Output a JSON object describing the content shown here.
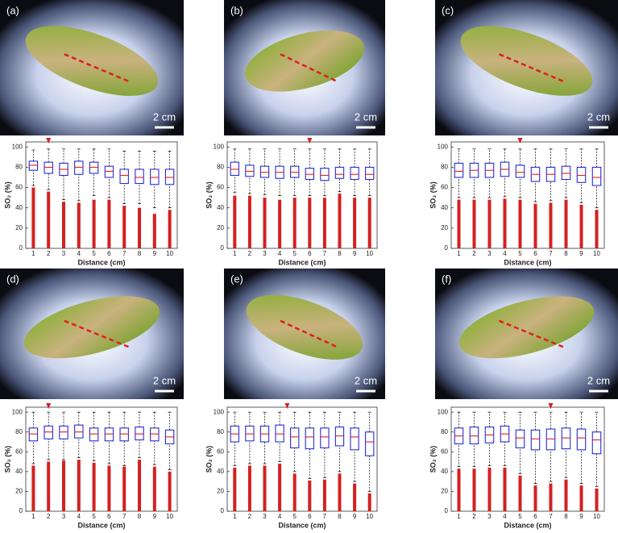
{
  "chart_data": [
    {
      "type": "box",
      "panel_label": "(a)",
      "scale_bar": "2 cm",
      "xlabel": "Distance  (cm)",
      "ylabel": "SO₂ (%)",
      "categories": [
        "1",
        "2",
        "3",
        "4",
        "5",
        "6",
        "7",
        "8",
        "9",
        "10"
      ],
      "ylim": [
        0,
        105
      ],
      "yticks": [
        0,
        20,
        40,
        60,
        80,
        100
      ],
      "box_color": "#2a2ad8",
      "median_color": "#e02020",
      "outlier_color": "#d42020",
      "marker_x": 2,
      "median": [
        82,
        80,
        78,
        80,
        80,
        76,
        72,
        70,
        70,
        70
      ],
      "q1": [
        77,
        74,
        72,
        73,
        74,
        70,
        64,
        64,
        63,
        63
      ],
      "q3": [
        86,
        85,
        84,
        86,
        85,
        81,
        78,
        78,
        78,
        78
      ],
      "whisker_low": [
        62,
        58,
        48,
        47,
        52,
        50,
        44,
        44,
        40,
        40
      ],
      "whisker_high": [
        97,
        98,
        98,
        98,
        98,
        98,
        96,
        96,
        96,
        96
      ],
      "outlier_max": [
        60,
        56,
        46,
        45,
        48,
        48,
        42,
        40,
        34,
        38
      ]
    },
    {
      "type": "box",
      "panel_label": "(b)",
      "scale_bar": "2 cm",
      "xlabel": "Distance  (cm)",
      "ylabel": "SO₂ (%)",
      "categories": [
        "1",
        "2",
        "3",
        "4",
        "5",
        "6",
        "7",
        "8",
        "9",
        "10"
      ],
      "ylim": [
        0,
        105
      ],
      "yticks": [
        0,
        20,
        40,
        60,
        80,
        100
      ],
      "box_color": "#2a2ad8",
      "median_color": "#e02020",
      "outlier_color": "#d42020",
      "marker_x": 6,
      "median": [
        78,
        76,
        75,
        75,
        75,
        73,
        72,
        73,
        73,
        73
      ],
      "q1": [
        72,
        71,
        70,
        69,
        70,
        68,
        67,
        69,
        68,
        68
      ],
      "q3": [
        85,
        82,
        81,
        81,
        81,
        79,
        79,
        80,
        80,
        80
      ],
      "whisker_low": [
        55,
        54,
        53,
        52,
        52,
        52,
        52,
        56,
        52,
        52
      ],
      "whisker_high": [
        98,
        98,
        98,
        98,
        98,
        98,
        98,
        98,
        98,
        98
      ],
      "outlier_max": [
        52,
        52,
        50,
        48,
        50,
        50,
        50,
        54,
        50,
        50
      ]
    },
    {
      "type": "box",
      "panel_label": "(c)",
      "scale_bar": "2 cm",
      "xlabel": "Distance  (cm)",
      "ylabel": "SO₂ (%)",
      "categories": [
        "1",
        "2",
        "3",
        "4",
        "5",
        "6",
        "7",
        "8",
        "9",
        "10"
      ],
      "ylim": [
        0,
        105
      ],
      "yticks": [
        0,
        20,
        40,
        60,
        80,
        100
      ],
      "box_color": "#2a2ad8",
      "median_color": "#e02020",
      "outlier_color": "#d42020",
      "marker_x": 5,
      "median": [
        76,
        77,
        77,
        78,
        75,
        73,
        73,
        74,
        72,
        70
      ],
      "q1": [
        70,
        70,
        70,
        71,
        70,
        66,
        66,
        68,
        65,
        62
      ],
      "q3": [
        84,
        84,
        84,
        85,
        82,
        80,
        80,
        81,
        80,
        80
      ],
      "whisker_low": [
        50,
        50,
        50,
        51,
        50,
        46,
        47,
        50,
        45,
        40
      ],
      "whisker_high": [
        98,
        98,
        98,
        98,
        98,
        98,
        98,
        98,
        98,
        98
      ],
      "outlier_max": [
        48,
        48,
        48,
        49,
        48,
        44,
        45,
        48,
        43,
        38
      ]
    },
    {
      "type": "box",
      "panel_label": "(d)",
      "scale_bar": "2 cm",
      "xlabel": "Distance  (cm)",
      "ylabel": "SO₂ (%)",
      "categories": [
        "1",
        "2",
        "3",
        "4",
        "5",
        "6",
        "7",
        "8",
        "9",
        "10"
      ],
      "ylim": [
        0,
        105
      ],
      "yticks": [
        0,
        20,
        40,
        60,
        80,
        100
      ],
      "box_color": "#2a2ad8",
      "median_color": "#e02020",
      "outlier_color": "#d42020",
      "marker_x": 2,
      "median": [
        78,
        80,
        80,
        80,
        78,
        78,
        78,
        78,
        78,
        75
      ],
      "q1": [
        71,
        73,
        73,
        74,
        71,
        71,
        71,
        72,
        71,
        68
      ],
      "q3": [
        84,
        86,
        86,
        87,
        84,
        84,
        84,
        85,
        84,
        82
      ],
      "whisker_low": [
        48,
        52,
        52,
        54,
        51,
        48,
        46,
        54,
        47,
        42
      ],
      "whisker_high": [
        100,
        100,
        100,
        100,
        100,
        100,
        100,
        100,
        100,
        100
      ],
      "outlier_max": [
        46,
        50,
        51,
        52,
        49,
        46,
        45,
        52,
        45,
        40
      ]
    },
    {
      "type": "box",
      "panel_label": "(e)",
      "scale_bar": "2 cm",
      "xlabel": "Distance  (cm)",
      "ylabel": "SO₂ (%)",
      "categories": [
        "1",
        "2",
        "3",
        "4",
        "5",
        "6",
        "7",
        "8",
        "9",
        "10"
      ],
      "ylim": [
        0,
        105
      ],
      "yticks": [
        0,
        20,
        40,
        60,
        80,
        100
      ],
      "box_color": "#2a2ad8",
      "median_color": "#e02020",
      "outlier_color": "#d42020",
      "marker_x": 4.5,
      "median": [
        78,
        78,
        78,
        78,
        75,
        75,
        75,
        76,
        75,
        70
      ],
      "q1": [
        70,
        71,
        70,
        70,
        64,
        63,
        64,
        66,
        62,
        56
      ],
      "q3": [
        86,
        86,
        86,
        87,
        84,
        84,
        84,
        85,
        84,
        80
      ],
      "whisker_low": [
        46,
        48,
        48,
        50,
        40,
        33,
        34,
        40,
        30,
        20
      ],
      "whisker_high": [
        100,
        100,
        100,
        100,
        100,
        100,
        100,
        100,
        100,
        100
      ],
      "outlier_max": [
        44,
        46,
        46,
        48,
        38,
        31,
        32,
        38,
        28,
        18
      ]
    },
    {
      "type": "box",
      "panel_label": "(f)",
      "scale_bar": "2 cm",
      "xlabel": "Distance  (cm)",
      "ylabel": "SO₂ (%)",
      "categories": [
        "1",
        "2",
        "3",
        "4",
        "5",
        "6",
        "7",
        "8",
        "9",
        "10"
      ],
      "ylim": [
        0,
        105
      ],
      "yticks": [
        0,
        20,
        40,
        60,
        80,
        100
      ],
      "box_color": "#2a2ad8",
      "median_color": "#e02020",
      "outlier_color": "#d42020",
      "marker_x": 7,
      "median": [
        76,
        76,
        77,
        78,
        74,
        73,
        73,
        74,
        74,
        72
      ],
      "q1": [
        68,
        68,
        69,
        70,
        64,
        62,
        62,
        63,
        62,
        58
      ],
      "q3": [
        84,
        85,
        85,
        86,
        82,
        82,
        83,
        84,
        83,
        80
      ],
      "whisker_low": [
        45,
        45,
        46,
        46,
        38,
        28,
        30,
        34,
        28,
        25
      ],
      "whisker_high": [
        100,
        100,
        100,
        100,
        100,
        100,
        100,
        100,
        100,
        100
      ],
      "outlier_max": [
        43,
        43,
        44,
        44,
        36,
        26,
        28,
        32,
        26,
        23
      ]
    }
  ]
}
